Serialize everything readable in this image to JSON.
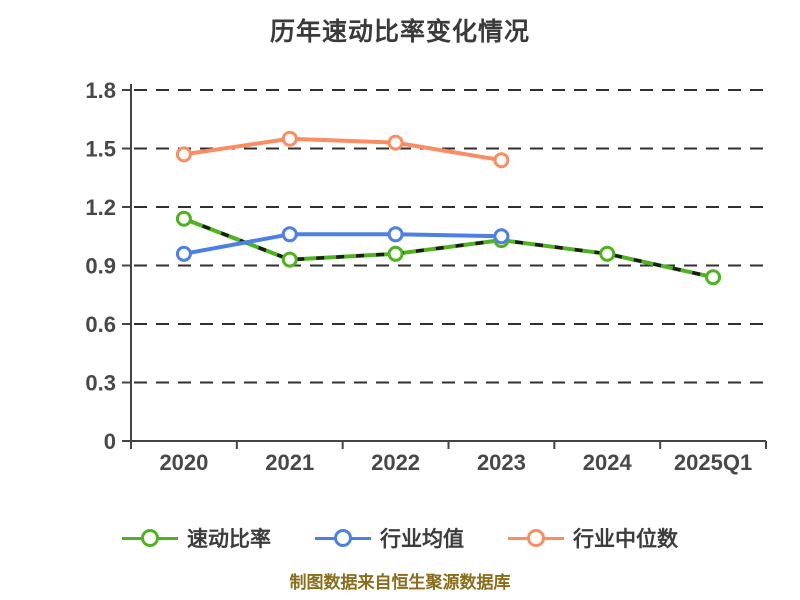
{
  "title": "历年速动比率变化情况",
  "footer_note": "制图数据来自恒生聚源数据库",
  "colors": {
    "background": "#ffffff",
    "title_text": "#3a3a3a",
    "axis_text": "#484848",
    "axis_line": "#444444",
    "gridline": "#303030",
    "legend_text": "#3c3c3c",
    "footer_text": "#8a6d1b",
    "marker_fill": "#ffffff",
    "green_dash_overlay": "#1c1c1c",
    "quick_ratio_green": "#4fb321",
    "industry_avg_blue": "#4d80e4",
    "industry_median_orange": "#fb8d62"
  },
  "chart_data": {
    "type": "line",
    "title": "历年速动比率变化情况",
    "categories": [
      "2020",
      "2021",
      "2022",
      "2023",
      "2024",
      "2025Q1"
    ],
    "series": [
      {
        "name": "速动比率",
        "color": "#4fb321",
        "line_style": "solid with dark dashed overlay",
        "values": [
          1.14,
          0.93,
          0.96,
          1.03,
          0.96,
          0.84
        ]
      },
      {
        "name": "行业均值",
        "color": "#4d80e4",
        "line_style": "solid",
        "values": [
          0.96,
          1.06,
          1.06,
          1.05,
          null,
          null
        ]
      },
      {
        "name": "行业中位数",
        "color": "#fb8d62",
        "line_style": "solid",
        "values": [
          1.47,
          1.55,
          1.53,
          1.44,
          null,
          null
        ]
      }
    ],
    "xlabel": "",
    "ylabel": "",
    "ylim": [
      0,
      1.8
    ],
    "yticks": [
      0,
      0.3,
      0.6,
      0.9,
      1.2,
      1.5,
      1.8
    ],
    "grid": "horizontal dashed",
    "legend_position": "bottom",
    "marker": "circle, white fill, colored ring"
  }
}
